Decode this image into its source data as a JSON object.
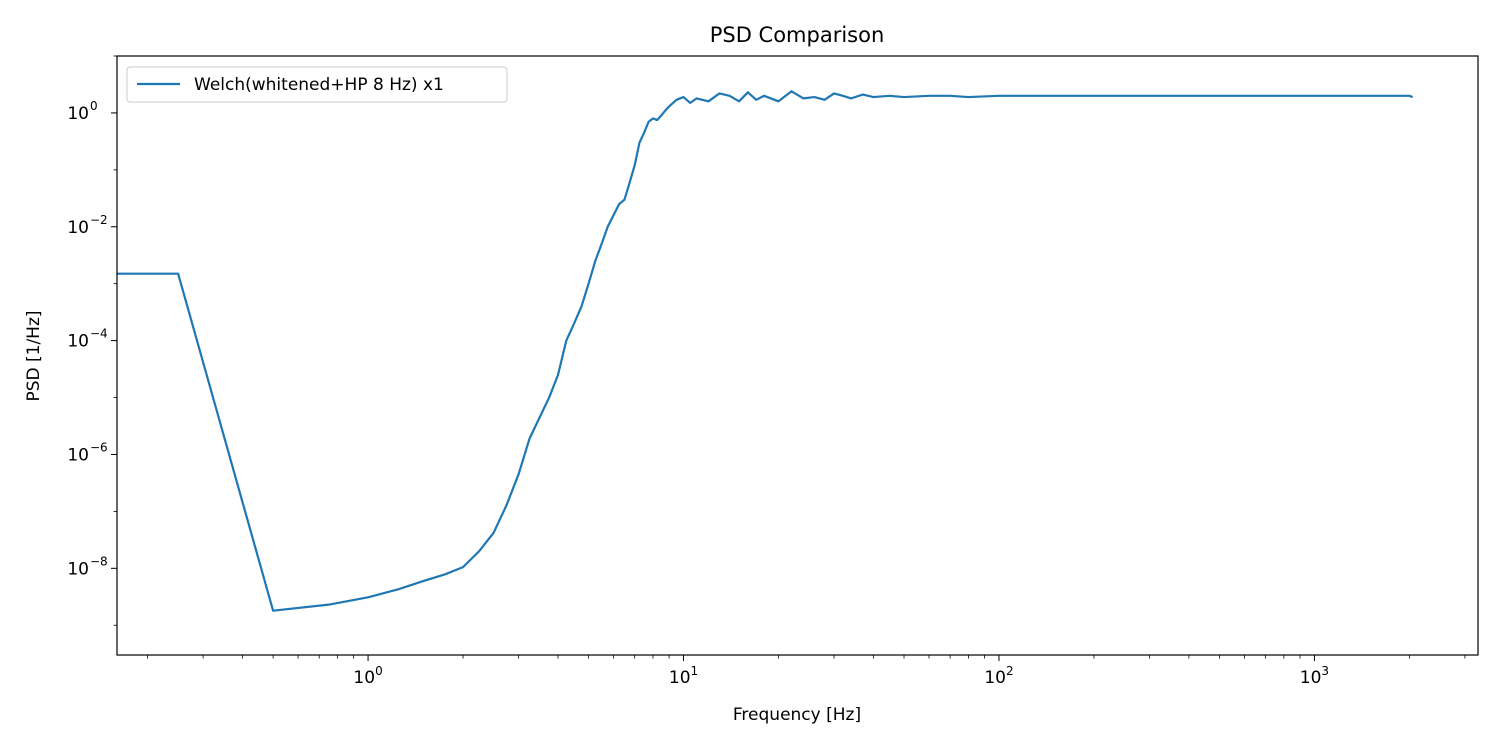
{
  "chart_data": {
    "type": "line",
    "title": "PSD Comparison",
    "xlabel": "Frequency [Hz]",
    "ylabel": "PSD [1/Hz]",
    "xscale": "log",
    "yscale": "log",
    "xlim": [
      0.16,
      3300
    ],
    "ylim": [
      3e-10,
      10
    ],
    "xticks": [
      {
        "value": 1,
        "base": "10",
        "exp": "0"
      },
      {
        "value": 10,
        "base": "10",
        "exp": "1"
      },
      {
        "value": 100,
        "base": "10",
        "exp": "2"
      },
      {
        "value": 1000,
        "base": "10",
        "exp": "3"
      }
    ],
    "yticks": [
      {
        "value": 1,
        "base": "10",
        "exp": "0"
      },
      {
        "value": 0.01,
        "base": "10",
        "exp": "−2"
      },
      {
        "value": 0.0001,
        "base": "10",
        "exp": "−4"
      },
      {
        "value": 1e-06,
        "base": "10",
        "exp": "−6"
      },
      {
        "value": 1e-08,
        "base": "10",
        "exp": "−8"
      }
    ],
    "grid": false,
    "legend_position": "upper-left",
    "series": [
      {
        "name": "Welch(whitened+HP 8 Hz) x1",
        "color": "#1f77b4",
        "x": [
          0.16,
          0.25,
          0.5,
          0.75,
          1.0,
          1.25,
          1.5,
          1.75,
          2.0,
          2.25,
          2.5,
          2.75,
          3.0,
          3.25,
          3.5,
          3.75,
          4.0,
          4.25,
          4.5,
          4.75,
          5.0,
          5.25,
          5.5,
          5.75,
          6.0,
          6.25,
          6.5,
          6.75,
          7.0,
          7.25,
          7.5,
          7.75,
          8.0,
          8.25,
          8.5,
          8.75,
          9.0,
          9.5,
          10,
          10.5,
          11,
          12,
          13,
          14,
          15,
          16,
          17,
          18,
          20,
          22,
          24,
          26,
          28,
          30,
          32,
          34,
          37,
          40,
          45,
          50,
          60,
          70,
          80,
          100,
          150,
          200,
          300,
          500,
          700,
          1000,
          1500,
          2000,
          2048
        ],
        "y": [
          0.0015,
          0.0015,
          1.8e-09,
          2.3e-09,
          3.1e-09,
          4.3e-09,
          6e-09,
          7.8e-09,
          1.05e-08,
          2e-08,
          4.2e-08,
          1.3e-07,
          4.5e-07,
          1.9e-06,
          4.5e-06,
          1e-05,
          2.5e-05,
          0.0001,
          0.0002,
          0.0004,
          0.001,
          0.0025,
          0.005,
          0.01,
          0.016,
          0.025,
          0.03,
          0.06,
          0.12,
          0.3,
          0.45,
          0.7,
          0.8,
          0.75,
          0.9,
          1.1,
          1.3,
          1.7,
          1.9,
          1.5,
          1.8,
          1.6,
          2.2,
          2.0,
          1.6,
          2.3,
          1.7,
          2.0,
          1.6,
          2.4,
          1.8,
          1.9,
          1.7,
          2.2,
          2.0,
          1.8,
          2.1,
          1.9,
          2.0,
          1.9,
          2.0,
          2.0,
          1.9,
          2.0,
          2.0,
          2.0,
          2.0,
          2.0,
          2.0,
          2.0,
          2.0,
          2.0,
          1.9
        ]
      }
    ]
  }
}
